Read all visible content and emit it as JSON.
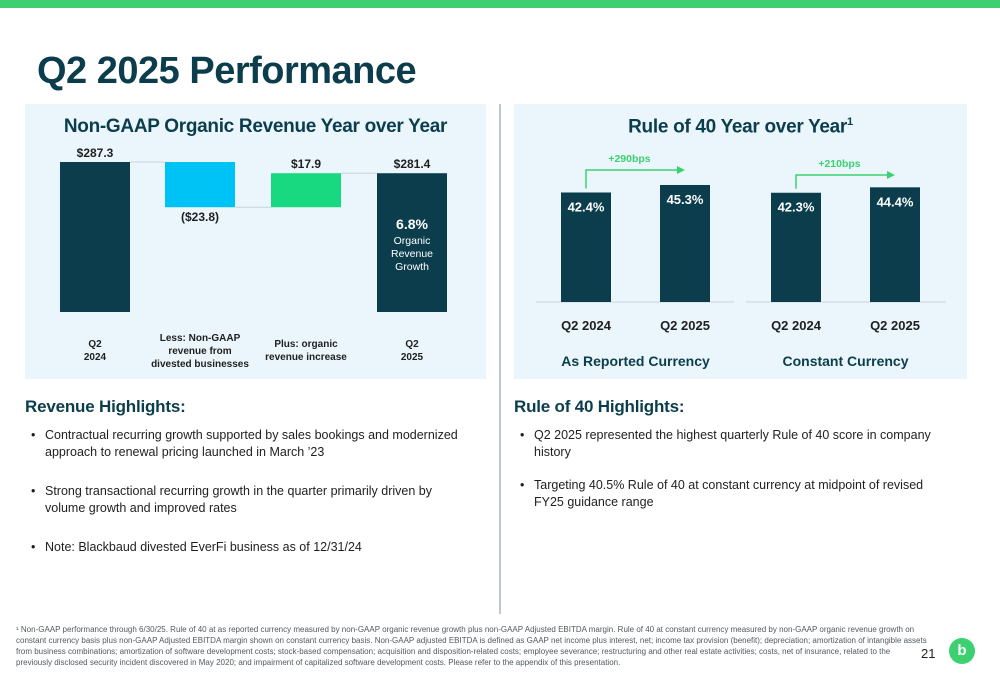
{
  "page": {
    "title": "Q2 2025 Performance",
    "page_number": "21",
    "logo_text": "b",
    "accent_color": "#3cd070",
    "dark_color": "#0b3d4c"
  },
  "chart_data": [
    {
      "type": "bar",
      "subtype": "waterfall",
      "title": "Non-GAAP Organic Revenue Year over Year",
      "categories": [
        "Q2\n2024",
        "Less: Non-GAAP\nrevenue from\ndivested businesses",
        "Plus: organic\nrevenue increase",
        "Q2\n2025"
      ],
      "values": [
        287.3,
        -23.8,
        17.9,
        281.4
      ],
      "value_labels": [
        "$287.3",
        "($23.8)",
        "$17.9",
        "$281.4"
      ],
      "colors": [
        "#0b3d4c",
        "#00c3f5",
        "#18d880",
        "#0b3d4c"
      ],
      "annotation": {
        "value": "6.8%",
        "text": "Organic\nRevenue\nGrowth"
      },
      "grid": false,
      "legend": "none"
    },
    {
      "type": "bar",
      "title": "Rule of 40 Year over Year",
      "title_superscript": "1",
      "groups": [
        {
          "name": "As Reported Currency",
          "categories": [
            "Q2 2024",
            "Q2 2025"
          ],
          "values": [
            42.4,
            45.3
          ],
          "value_labels": [
            "42.4%",
            "45.3%"
          ],
          "change_label": "+290bps"
        },
        {
          "name": "Constant Currency",
          "categories": [
            "Q2 2024",
            "Q2 2025"
          ],
          "values": [
            42.3,
            44.4
          ],
          "value_labels": [
            "42.3%",
            "44.4%"
          ],
          "change_label": "+210bps"
        }
      ],
      "bar_color": "#0b3d4c",
      "arrow_color": "#3cd070",
      "grid": false,
      "legend": "none"
    }
  ],
  "revenue_highlights": {
    "heading": "Revenue Highlights:",
    "items": [
      "Contractual recurring growth supported by sales bookings and modernized approach to renewal pricing launched in March ’23",
      "Strong transactional recurring growth in the quarter primarily driven by volume growth and improved rates",
      "Note: Blackbaud divested EverFi business as of 12/31/24"
    ]
  },
  "rule40_highlights": {
    "heading": "Rule of 40 Highlights:",
    "items": [
      "Q2 2025 represented the highest quarterly Rule of 40 score in company history",
      "Targeting 40.5% Rule of 40 at constant currency at midpoint of revised FY25 guidance range"
    ]
  },
  "footnote": "¹ Non-GAAP performance through 6/30/25. Rule of 40 at as reported currency measured by non-GAAP organic revenue growth plus non-GAAP Adjusted EBITDA margin. Rule of 40 at constant currency measured by non-GAAP organic revenue growth on constant currency basis plus non-GAAP Adjusted EBITDA margin shown on constant currency basis. Non-GAAP adjusted EBITDA is defined as GAAP net income plus interest, net; income tax provision (benefit); depreciation; amortization of intangible assets from business combinations; amortization of software development costs; stock-based compensation; acquisition and disposition-related costs; employee severance; restructuring and other real estate activities; costs, net of insurance, related to the previously disclosed security incident discovered in May 2020; and impairment of capitalized software development costs. Please refer to the appendix of this presentation."
}
